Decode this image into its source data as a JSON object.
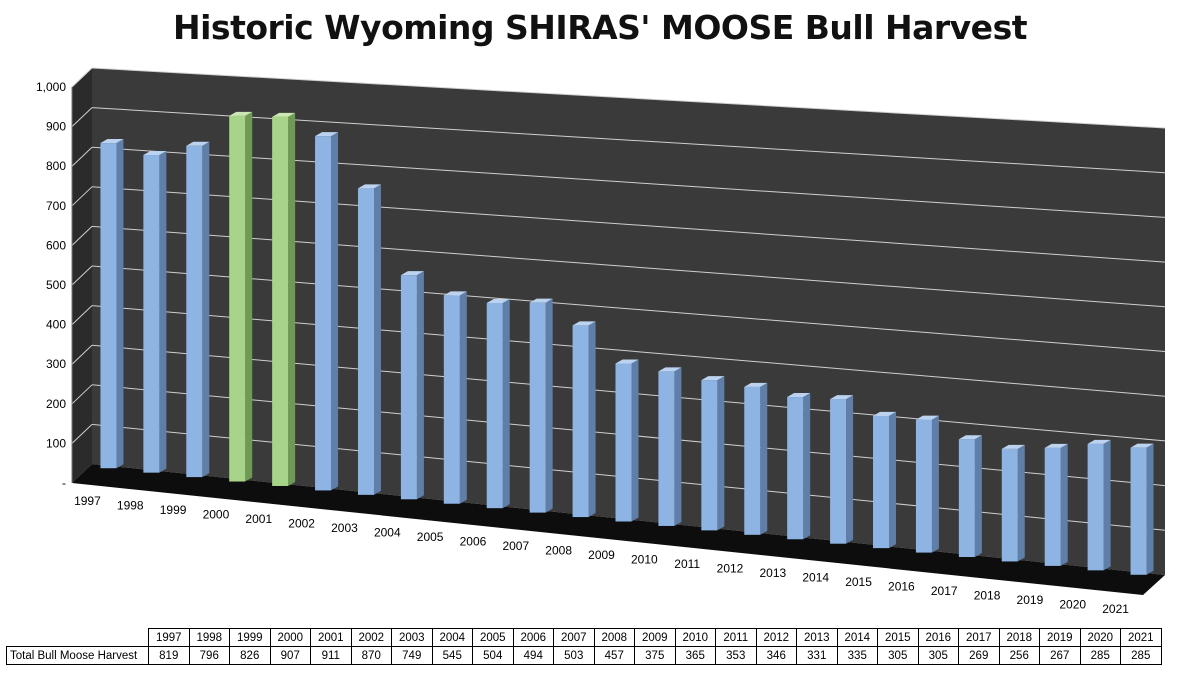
{
  "chart_data": {
    "type": "bar",
    "title": "Historic Wyoming SHIRAS' MOOSE Bull Harvest",
    "categories": [
      "1997",
      "1998",
      "1999",
      "2000",
      "2001",
      "2002",
      "2003",
      "2004",
      "2005",
      "2006",
      "2007",
      "2008",
      "2009",
      "2010",
      "2011",
      "2012",
      "2013",
      "2014",
      "2015",
      "2016",
      "2017",
      "2018",
      "2019",
      "2020",
      "2021"
    ],
    "series": [
      {
        "name": "Total Bull Moose Harvest",
        "values": [
          819,
          796,
          826,
          907,
          911,
          870,
          749,
          545,
          504,
          494,
          503,
          457,
          375,
          365,
          353,
          346,
          331,
          335,
          305,
          305,
          269,
          256,
          267,
          285,
          285
        ],
        "highlight_categories": [
          "2000",
          "2001"
        ]
      }
    ],
    "ylim": [
      0,
      1000
    ],
    "yticks": [
      0,
      100,
      200,
      300,
      400,
      500,
      600,
      700,
      800,
      900,
      1000
    ],
    "ytick_labels": [
      "-",
      "100",
      "200",
      "300",
      "400",
      "500",
      "600",
      "700",
      "800",
      "900",
      "1,000"
    ],
    "grid": true,
    "colors": {
      "bar": "#8eb4e3",
      "bar_side": "#5f7fa8",
      "bar_top": "#bcd3f0",
      "highlight": "#a8d48a",
      "highlight_side": "#6e9a55",
      "highlight_top": "#cbe8b3",
      "plot_wall": "#3a3a3a",
      "floor": "#0d0d0d",
      "gridline": "#cfcfcf"
    }
  }
}
